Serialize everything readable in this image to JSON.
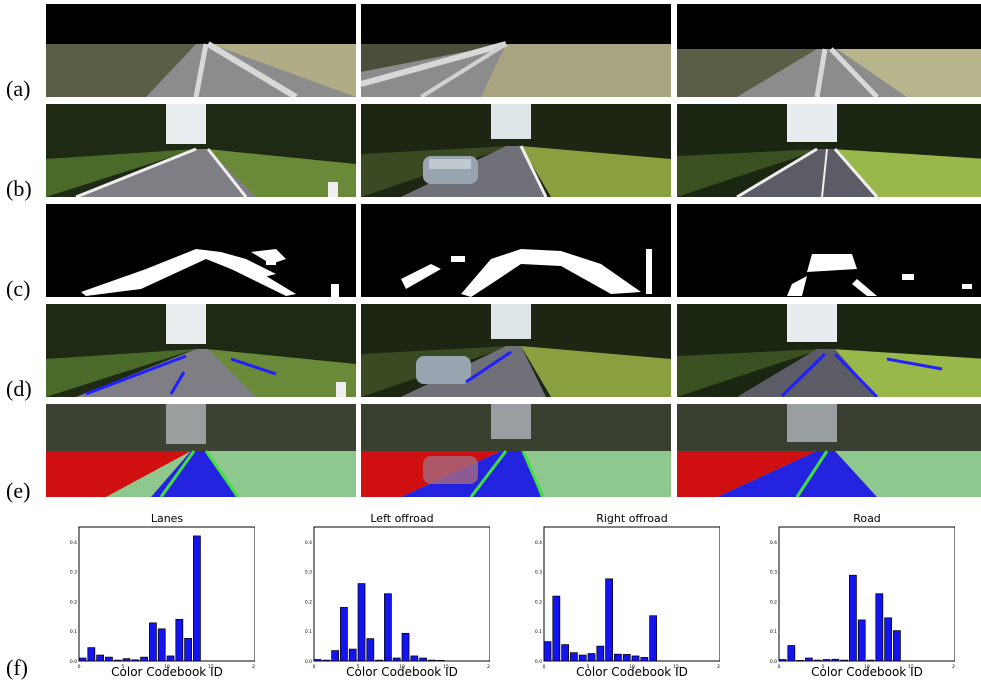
{
  "row_labels": [
    "(a)",
    "(b)",
    "(c)",
    "(d)",
    "(e)",
    "(f)"
  ],
  "colors": {
    "bar_fill": "#1414f0",
    "bar_stroke": "#000000",
    "overlay_left": "#d01010",
    "overlay_road": "#2424e0",
    "overlay_right": "#8fc88f",
    "lane_line": "#40e040",
    "detected_lane": "#2020ff"
  },
  "chart_data": [
    {
      "type": "bar",
      "title": "Lanes",
      "xlabel": "Color Codebook ID",
      "ylabel": "",
      "xlim": [
        0,
        20
      ],
      "ylim": [
        0,
        0.45
      ],
      "x_ticks": [
        "0",
        "5",
        "10",
        "15",
        "20"
      ],
      "y_ticks": [
        "0.0",
        "0.1",
        "0.2",
        "0.3",
        "0.4"
      ],
      "x": [
        0,
        1,
        2,
        3,
        4,
        5,
        6,
        7,
        8,
        9,
        10,
        11,
        12,
        13,
        14,
        15,
        16,
        17,
        18,
        19
      ],
      "values": [
        0.01,
        0.045,
        0.02,
        0.013,
        0.003,
        0.008,
        0.004,
        0.013,
        0.128,
        0.108,
        0.017,
        0.14,
        0.076,
        0.42,
        0,
        0,
        0,
        0,
        0,
        0
      ]
    },
    {
      "type": "bar",
      "title": "Left offroad",
      "xlabel": "Color Codebook ID",
      "ylabel": "",
      "xlim": [
        0,
        20
      ],
      "ylim": [
        0,
        0.45
      ],
      "x_ticks": [
        "0",
        "5",
        "10",
        "15",
        "20"
      ],
      "y_ticks": [
        "0.0",
        "0.1",
        "0.2",
        "0.3",
        "0.4"
      ],
      "x": [
        0,
        1,
        2,
        3,
        4,
        5,
        6,
        7,
        8,
        9,
        10,
        11,
        12,
        13,
        14,
        15,
        16,
        17,
        18,
        19
      ],
      "values": [
        0.005,
        0.003,
        0.035,
        0.18,
        0.04,
        0.26,
        0.075,
        0.003,
        0.226,
        0.01,
        0.093,
        0.017,
        0.01,
        0.003,
        0.002,
        0,
        0,
        0,
        0,
        0
      ]
    },
    {
      "type": "bar",
      "title": "Right offroad",
      "xlabel": "Color Codebook ID",
      "ylabel": "",
      "xlim": [
        0,
        20
      ],
      "ylim": [
        0,
        0.45
      ],
      "x_ticks": [
        "0",
        "5",
        "10",
        "15",
        "20"
      ],
      "y_ticks": [
        "0.0",
        "0.1",
        "0.2",
        "0.3",
        "0.4"
      ],
      "x": [
        0,
        1,
        2,
        3,
        4,
        5,
        6,
        7,
        8,
        9,
        10,
        11,
        12,
        13,
        14,
        15,
        16,
        17,
        18,
        19
      ],
      "values": [
        0.065,
        0.218,
        0.055,
        0.028,
        0.02,
        0.025,
        0.05,
        0.276,
        0.023,
        0.022,
        0.017,
        0.012,
        0.152,
        0,
        0,
        0,
        0,
        0,
        0,
        0
      ]
    },
    {
      "type": "bar",
      "title": "Road",
      "xlabel": "Color Codebook ID",
      "ylabel": "",
      "xlim": [
        0,
        20
      ],
      "ylim": [
        0,
        0.45
      ],
      "x_ticks": [
        "0",
        "5",
        "10",
        "15",
        "20"
      ],
      "y_ticks": [
        "0.0",
        "0.1",
        "0.2",
        "0.3",
        "0.4"
      ],
      "x": [
        0,
        1,
        2,
        3,
        4,
        5,
        6,
        7,
        8,
        9,
        10,
        11,
        12,
        13,
        14,
        15,
        16,
        17,
        18,
        19
      ],
      "values": [
        0.005,
        0.052,
        0.002,
        0.01,
        0.003,
        0.005,
        0.006,
        0.003,
        0.288,
        0.138,
        0.003,
        0.226,
        0.145,
        0.102,
        0,
        0,
        0,
        0,
        0,
        0
      ]
    }
  ]
}
